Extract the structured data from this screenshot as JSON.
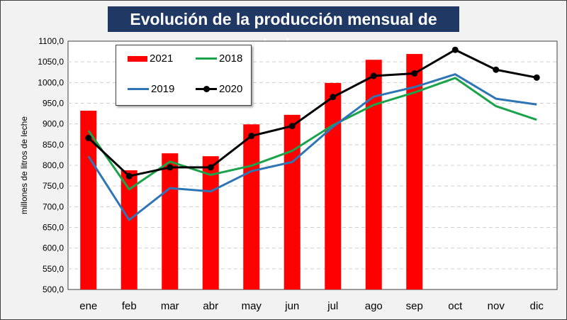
{
  "chart_data": {
    "type": "bar+line",
    "title": "Evolución de la producción mensual de leche",
    "ylabel": "millones de litros de leche",
    "xlabel": "",
    "ylim": [
      500,
      1100
    ],
    "yticks": [
      "500,0",
      "550,0",
      "600,0",
      "650,0",
      "700,0",
      "750,0",
      "800,0",
      "850,0",
      "900,0",
      "950,0",
      "1000,0",
      "1050,0",
      "1100,0"
    ],
    "grid": true,
    "legend_position": "top-left",
    "categories": [
      "ene",
      "feb",
      "mar",
      "abr",
      "may",
      "jun",
      "jul",
      "ago",
      "sep",
      "oct",
      "nov",
      "dic"
    ],
    "series": [
      {
        "name": "2021",
        "kind": "bar",
        "color": "#ff0000",
        "values": [
          932,
          788,
          829,
          822,
          899,
          922,
          999,
          1055,
          1069,
          null,
          null,
          null
        ]
      },
      {
        "name": "2018",
        "kind": "line",
        "color": "#1aa34a",
        "values": [
          884,
          742,
          809,
          777,
          799,
          835,
          897,
          946,
          976,
          1011,
          943,
          910
        ]
      },
      {
        "name": "2019",
        "kind": "line",
        "color": "#2e75b6",
        "values": [
          822,
          668,
          745,
          737,
          786,
          808,
          893,
          966,
          989,
          1020,
          961,
          947
        ]
      },
      {
        "name": "2020",
        "kind": "line",
        "markers": true,
        "color": "#000000",
        "values": [
          866,
          774,
          795,
          795,
          871,
          895,
          965,
          1016,
          1022,
          1079,
          1031,
          1012
        ]
      }
    ]
  }
}
